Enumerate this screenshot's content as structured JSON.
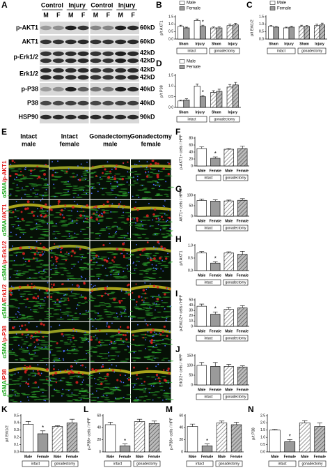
{
  "blot": {
    "panel_label": "A",
    "groups": [
      "Control",
      "Injury",
      "Control",
      "Injury"
    ],
    "lanes": [
      "M",
      "F",
      "M",
      "F",
      "M",
      "F",
      "M",
      "F"
    ],
    "rows": [
      {
        "label": "p-AKT1",
        "sizes": [
          "60kD"
        ]
      },
      {
        "label": "AKT1",
        "sizes": [
          "60kD"
        ]
      },
      {
        "label": "p-Erk1/2",
        "sizes": [
          "42kD",
          "42kD"
        ]
      },
      {
        "label": "Erk1/2",
        "sizes": [
          "42kD",
          "42kD"
        ]
      },
      {
        "label": "p-P38",
        "sizes": [
          "40kD"
        ]
      },
      {
        "label": "P38",
        "sizes": [
          "40kD"
        ]
      },
      {
        "label": "HSP90",
        "sizes": [
          "90kD"
        ]
      }
    ]
  },
  "histology": {
    "panel_label": "E",
    "columns": [
      [
        "Intact",
        "male"
      ],
      [
        "Intact",
        "female"
      ],
      [
        "Gonadectomy",
        "male"
      ],
      [
        "Gonadectomy",
        "female"
      ]
    ],
    "rows": [
      {
        "stain": "αSMA",
        "marker": "/p-AKT1"
      },
      {
        "stain": "αSMA",
        "marker": "/AKT1"
      },
      {
        "stain": "αSMA",
        "marker": "/p-Erk1/2"
      },
      {
        "stain": "αSMA",
        "marker": "/Erk1/2"
      },
      {
        "stain": "αSMA",
        "marker": "/p-P38"
      },
      {
        "stain": "αSMA",
        "marker": "/P38"
      }
    ]
  },
  "chart_data": [
    {
      "type": "bar",
      "panel_label": "B",
      "ylabel": "p/t AKT1",
      "categories": [
        "Sham",
        "Injury",
        "Sham",
        "Injury"
      ],
      "groups": [
        "intact",
        "gonadectomy"
      ],
      "hatched": [
        false,
        false,
        true,
        true
      ],
      "series": [
        {
          "name": "Male",
          "color": "#ffffff",
          "values": [
            0.85,
            1.25,
            0.75,
            0.9
          ],
          "errors": [
            0.08,
            0.1,
            0.06,
            0.1
          ]
        },
        {
          "name": "Female",
          "color": "#9a9a9a",
          "values": [
            0.75,
            0.85,
            0.75,
            0.95
          ],
          "errors": [
            0.05,
            0.08,
            0.06,
            0.1
          ],
          "stars": [
            null,
            "*",
            null,
            null
          ]
        }
      ],
      "ylim": [
        0,
        1.5
      ],
      "yticks": [
        {
          "value": 0,
          "label": "0.0"
        },
        0.5,
        {
          "value": 1,
          "label": "1.0"
        },
        1.5
      ]
    },
    {
      "type": "bar",
      "panel_label": "C",
      "ylabel": "p/t Erk1/2",
      "categories": [
        "Sham",
        "Injury",
        "Sham",
        "Injury"
      ],
      "groups": [
        "intact",
        "gonadectomy"
      ],
      "hatched": [
        false,
        false,
        true,
        true
      ],
      "series": [
        {
          "name": "Male",
          "color": "#ffffff",
          "values": [
            0.85,
            0.75,
            0.85,
            0.9
          ],
          "errors": [
            0.07,
            0.05,
            0.08,
            0.1
          ]
        },
        {
          "name": "Female",
          "color": "#9a9a9a",
          "values": [
            0.8,
            0.8,
            0.85,
            0.95
          ],
          "errors": [
            0.05,
            0.06,
            0.07,
            0.12
          ]
        }
      ],
      "ylim": [
        0,
        1.5
      ],
      "yticks": [
        {
          "value": 0,
          "label": "0.0"
        },
        0.5,
        {
          "value": 1,
          "label": "1.0"
        },
        1.5
      ]
    },
    {
      "type": "bar",
      "panel_label": "D",
      "ylabel": "p/t P38",
      "categories": [
        "Sham",
        "Injury",
        "Sham",
        "Injury"
      ],
      "groups": [
        "intact",
        "gonadectomy"
      ],
      "hatched": [
        false,
        false,
        true,
        true
      ],
      "series": [
        {
          "name": "Male",
          "color": "#ffffff",
          "values": [
            0.3,
            1.0,
            0.7,
            0.95
          ],
          "errors": [
            0.04,
            0.1,
            0.08,
            0.12
          ]
        },
        {
          "name": "Female",
          "color": "#9a9a9a",
          "values": [
            0.35,
            0.5,
            0.75,
            1.05
          ],
          "errors": [
            0.05,
            0.06,
            0.1,
            0.12
          ],
          "stars": [
            null,
            "*",
            null,
            null
          ]
        }
      ],
      "ylim": [
        0,
        1.5
      ],
      "yticks": [
        {
          "value": 0,
          "label": "0.0"
        },
        0.5,
        {
          "value": 1,
          "label": "1.0"
        },
        1.5
      ]
    },
    {
      "type": "bar",
      "panel_label": "F",
      "ylabel": "p-AKT1+ cells / HPF",
      "categories": [
        "Male",
        "Female",
        "Male",
        "Female"
      ],
      "groups": [
        "intact",
        "gonadectomy"
      ],
      "hatched": [
        false,
        false,
        true,
        true
      ],
      "colors": [
        "#ffffff",
        "#9a9a9a",
        "#ffffff",
        "#9a9a9a"
      ],
      "values": [
        50,
        22,
        48,
        50
      ],
      "errors": [
        5,
        4,
        2,
        7
      ],
      "stars": [
        null,
        "*",
        null,
        null
      ],
      "ylim": [
        0,
        80
      ],
      "yticks": [
        0,
        20,
        40,
        60,
        80
      ]
    },
    {
      "type": "bar",
      "panel_label": "G",
      "ylabel": "AKT1+ cells / HPF",
      "categories": [
        "Male",
        "Female",
        "Male",
        "Female"
      ],
      "groups": [
        "intact",
        "gonadectomy"
      ],
      "hatched": [
        false,
        false,
        true,
        true
      ],
      "colors": [
        "#ffffff",
        "#9a9a9a",
        "#ffffff",
        "#9a9a9a"
      ],
      "values": [
        75,
        72,
        73,
        76
      ],
      "errors": [
        7,
        6,
        4,
        8
      ],
      "ylim": [
        0,
        100
      ],
      "yticks": [
        0,
        50,
        100
      ]
    },
    {
      "type": "bar",
      "panel_label": "H",
      "ylabel": "p/t AKT1",
      "categories": [
        "Male",
        "Female",
        "Male",
        "Female"
      ],
      "groups": [
        "intact",
        "gonadectomy"
      ],
      "hatched": [
        false,
        false,
        true,
        true
      ],
      "colors": [
        "#ffffff",
        "#9a9a9a",
        "#ffffff",
        "#9a9a9a"
      ],
      "values": [
        0.7,
        0.3,
        0.7,
        0.65
      ],
      "errors": [
        0.06,
        0.05,
        0.05,
        0.12
      ],
      "stars": [
        null,
        "*",
        null,
        null
      ],
      "ylim": [
        0,
        1
      ],
      "yticks": [
        {
          "value": 0,
          "label": "0.0"
        },
        0.5,
        {
          "value": 1,
          "label": "1.0"
        }
      ]
    },
    {
      "type": "bar",
      "panel_label": "I",
      "ylabel": "p-Erk1/2+ cells / HPF",
      "categories": [
        "Male",
        "Female",
        "Male",
        "Female"
      ],
      "groups": [
        "intact",
        "gonadectomy"
      ],
      "hatched": [
        false,
        false,
        true,
        true
      ],
      "colors": [
        "#ffffff",
        "#9a9a9a",
        "#ffffff",
        "#9a9a9a"
      ],
      "values": [
        38,
        23,
        32,
        35
      ],
      "errors": [
        4,
        4,
        4,
        4
      ],
      "stars": [
        null,
        "*",
        null,
        null
      ],
      "ylim": [
        0,
        50
      ],
      "yticks": [
        0,
        10,
        20,
        30,
        40,
        50
      ]
    },
    {
      "type": "bar",
      "panel_label": "J",
      "ylabel": "Erk1/2+ cells / HPF",
      "categories": [
        "Male",
        "Female",
        "Male",
        "Female"
      ],
      "groups": [
        "intact",
        "gonadectomy"
      ],
      "hatched": [
        false,
        false,
        true,
        true
      ],
      "colors": [
        "#ffffff",
        "#9a9a9a",
        "#ffffff",
        "#9a9a9a"
      ],
      "values": [
        100,
        95,
        95,
        92
      ],
      "errors": [
        15,
        20,
        10,
        6
      ],
      "ylim": [
        0,
        150
      ],
      "yticks": [
        0,
        50,
        100,
        150
      ]
    },
    {
      "type": "bar",
      "panel_label": "K",
      "ylabel": "p/t Erk1/2",
      "categories": [
        "Male",
        "Female",
        "Male",
        "Female"
      ],
      "groups": [
        "intact",
        "gonadectomy"
      ],
      "hatched": [
        false,
        false,
        true,
        true
      ],
      "colors": [
        "#ffffff",
        "#9a9a9a",
        "#ffffff",
        "#9a9a9a"
      ],
      "values": [
        0.38,
        0.25,
        0.35,
        0.4
      ],
      "errors": [
        0.04,
        0.04,
        0.01,
        0.05
      ],
      "stars": [
        null,
        "*",
        null,
        null
      ],
      "ylim": [
        0,
        0.5
      ],
      "yticks": [
        {
          "value": 0,
          "label": "0.0"
        },
        0.1,
        0.2,
        0.3,
        0.4,
        0.5
      ]
    },
    {
      "type": "bar",
      "panel_label": "L",
      "ylabel": "p-P38+ cells / HPF",
      "categories": [
        "Male",
        "Female",
        "Male",
        "Female"
      ],
      "groups": [
        "intact",
        "gonadectomy"
      ],
      "hatched": [
        false,
        false,
        true,
        true
      ],
      "colors": [
        "#ffffff",
        "#9a9a9a",
        "#ffffff",
        "#9a9a9a"
      ],
      "values": [
        45,
        10,
        50,
        47
      ],
      "errors": [
        4,
        3,
        4,
        4
      ],
      "stars": [
        null,
        "*",
        null,
        null
      ],
      "ylim": [
        0,
        60
      ],
      "yticks": [
        0,
        20,
        40,
        60
      ]
    },
    {
      "type": "bar",
      "panel_label": "M",
      "ylabel": "p-P38+ cells / HPF",
      "categories": [
        "Male",
        "Female",
        "Male",
        "Female"
      ],
      "groups": [
        "intact",
        "gonadectomy"
      ],
      "hatched": [
        false,
        false,
        true,
        true
      ],
      "colors": [
        "#ffffff",
        "#9a9a9a",
        "#ffffff",
        "#9a9a9a"
      ],
      "values": [
        42,
        10,
        48,
        45
      ],
      "errors": [
        4,
        3,
        3,
        4
      ],
      "stars": [
        null,
        "*",
        null,
        null
      ],
      "ylim": [
        0,
        60
      ],
      "yticks": [
        0,
        20,
        40,
        60
      ]
    },
    {
      "type": "bar",
      "panel_label": "N",
      "ylabel": "p/t P38",
      "categories": [
        "Male",
        "Female",
        "Male",
        "Female"
      ],
      "groups": [
        "intact",
        "gonadectomy"
      ],
      "hatched": [
        false,
        false,
        true,
        true
      ],
      "colors": [
        "#ffffff",
        "#9a9a9a",
        "#ffffff",
        "#9a9a9a"
      ],
      "values": [
        1.5,
        0.7,
        2.0,
        1.75
      ],
      "errors": [
        0.05,
        0.15,
        0.15,
        0.25
      ],
      "stars": [
        null,
        "*",
        null,
        null
      ],
      "ylim": [
        0,
        2.5
      ],
      "yticks": [
        {
          "value": 0,
          "label": "0.0"
        },
        0.5,
        {
          "value": 1,
          "label": "1.0"
        },
        1.5,
        {
          "value": 2,
          "label": "2.0"
        },
        2.5
      ]
    }
  ]
}
